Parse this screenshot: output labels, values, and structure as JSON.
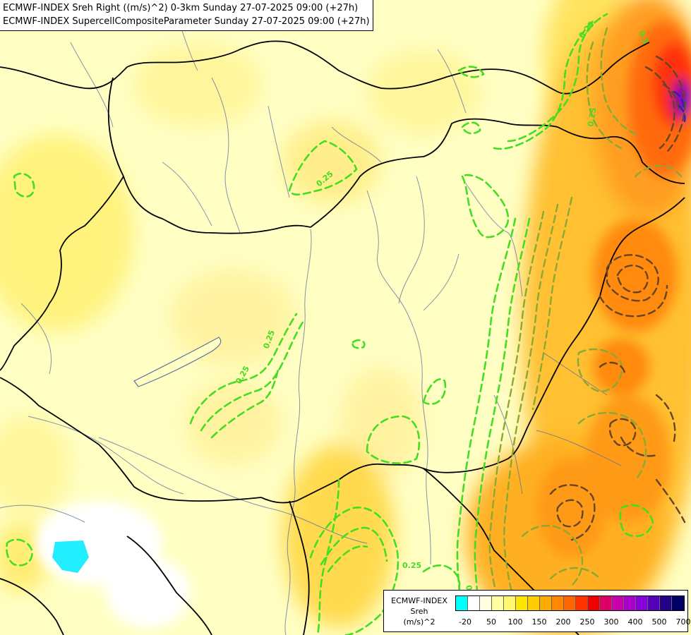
{
  "title": {
    "line1": "ECMWF-INDEX Sreh Right ((m/s)^2) 0-3km Sunday 27-07-2025 09:00 (+27h)",
    "line2": "ECMWF-INDEX SupercellCompositeParameter Sunday 27-07-2025 09:00 (+27h)"
  },
  "legend": {
    "line1": "ECMWF-INDEX",
    "line2": "Sreh",
    "line3": "(m/s)^2",
    "ticks": [
      "-20",
      "50",
      "100",
      "150",
      "200",
      "250",
      "300",
      "400",
      "500",
      "700"
    ],
    "colors": [
      "#00ffff",
      "#ffffff",
      "#ffffe0",
      "#ffffa0",
      "#fff870",
      "#ffe600",
      "#ffcc00",
      "#ffaa00",
      "#ff8800",
      "#ff6600",
      "#ff3300",
      "#ee0000",
      "#dd0066",
      "#cc00aa",
      "#aa00cc",
      "#8800dd",
      "#5500bb",
      "#220088",
      "#000066"
    ]
  },
  "contour_labels": [
    "0.25",
    "0.25",
    "0.25",
    "0.25",
    "0.5",
    "0.25",
    "0.25",
    "0.25"
  ],
  "colors": {
    "background": "#ffffc4",
    "border": "#000000",
    "river": "#5a6ea0",
    "contour_low": "#44dd22",
    "contour_mid": "#88aa33",
    "contour_high": "#664422"
  }
}
